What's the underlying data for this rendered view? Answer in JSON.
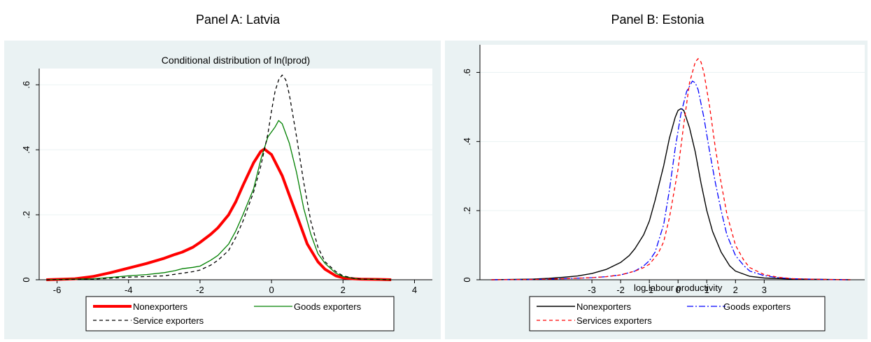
{
  "panels": {
    "a_title": "Panel A: Latvia",
    "b_title": "Panel B: Estonia"
  },
  "colors": {
    "outer_background": "#eaf2f3",
    "plot_background": "#ffffff",
    "grid": "#eaf2f3"
  },
  "chart_data": [
    {
      "type": "line",
      "title": "Conditional distribution of ln(lprod)",
      "xlabel": "",
      "ylabel": "",
      "xlim": [
        -6.5,
        4.5
      ],
      "ylim": [
        0,
        0.65
      ],
      "xticks": [
        -6,
        -4,
        -2,
        0,
        2,
        4
      ],
      "xtick_labels": [
        "-6",
        "-4",
        "-2",
        "0",
        "2",
        "4"
      ],
      "yticks": [
        0,
        0.2,
        0.4,
        0.6
      ],
      "ytick_labels": [
        "0",
        ".2",
        ".4",
        ".6"
      ],
      "grid": true,
      "legend_position": "bottom",
      "series": [
        {
          "name": "Nonexporters",
          "color": "#ff0000",
          "width": 4,
          "dash": "",
          "x": [
            -6.3,
            -5.5,
            -5,
            -4.5,
            -4,
            -3.5,
            -3,
            -2.7,
            -2.5,
            -2.2,
            -2,
            -1.7,
            -1.5,
            -1.2,
            -1,
            -0.8,
            -0.5,
            -0.3,
            -0.2,
            0,
            0.3,
            0.5,
            0.8,
            1,
            1.3,
            1.5,
            1.8,
            2,
            2.3,
            2.5,
            3,
            3.35
          ],
          "y": [
            0,
            0.003,
            0.01,
            0.022,
            0.036,
            0.05,
            0.066,
            0.078,
            0.085,
            0.1,
            0.115,
            0.14,
            0.16,
            0.2,
            0.24,
            0.29,
            0.36,
            0.395,
            0.402,
            0.385,
            0.32,
            0.26,
            0.17,
            0.11,
            0.055,
            0.032,
            0.012,
            0.006,
            0.003,
            0.002,
            0.001,
            0
          ]
        },
        {
          "name": "Goods exporters",
          "color": "#008000",
          "width": 1.3,
          "dash": "",
          "x": [
            -6.3,
            -5,
            -4.5,
            -4,
            -3.5,
            -3,
            -2.7,
            -2.5,
            -2.2,
            -2,
            -1.7,
            -1.5,
            -1.2,
            -1,
            -0.8,
            -0.5,
            -0.3,
            -0.1,
            0.1,
            0.2,
            0.3,
            0.5,
            0.7,
            0.9,
            1.1,
            1.3,
            1.5,
            1.8,
            2,
            2.3,
            2.5,
            3,
            3.35
          ],
          "y": [
            0,
            0.003,
            0.007,
            0.012,
            0.016,
            0.022,
            0.028,
            0.034,
            0.038,
            0.042,
            0.06,
            0.075,
            0.11,
            0.15,
            0.2,
            0.28,
            0.37,
            0.44,
            0.47,
            0.49,
            0.48,
            0.42,
            0.33,
            0.22,
            0.14,
            0.08,
            0.05,
            0.02,
            0.01,
            0.004,
            0.002,
            0.001,
            0
          ]
        },
        {
          "name": "Service exporters",
          "color": "#000000",
          "width": 1.3,
          "dash": "5,4",
          "x": [
            -6.3,
            -5,
            -4.5,
            -4,
            -3.5,
            -3,
            -2.5,
            -2.2,
            -2,
            -1.7,
            -1.5,
            -1.2,
            -1,
            -0.8,
            -0.5,
            -0.3,
            -0.1,
            0,
            0.1,
            0.2,
            0.3,
            0.4,
            0.5,
            0.7,
            0.9,
            1.1,
            1.3,
            1.5,
            1.8,
            2,
            2.3,
            2.5,
            3,
            3.35
          ],
          "y": [
            0,
            0.002,
            0.005,
            0.008,
            0.01,
            0.012,
            0.02,
            0.025,
            0.03,
            0.045,
            0.06,
            0.09,
            0.13,
            0.18,
            0.27,
            0.35,
            0.45,
            0.52,
            0.58,
            0.615,
            0.63,
            0.615,
            0.57,
            0.44,
            0.3,
            0.18,
            0.1,
            0.055,
            0.025,
            0.012,
            0.005,
            0.002,
            0.001,
            0
          ]
        }
      ]
    },
    {
      "type": "line",
      "title": "",
      "xlabel": "log labour productivity",
      "ylabel": "",
      "xlim": [
        -6.9,
        6.5
      ],
      "ylim": [
        0,
        0.68
      ],
      "xticks": [
        -3,
        -2,
        -1,
        0,
        1,
        2,
        3
      ],
      "xtick_labels": [
        "-3",
        "-2",
        "-1",
        "0",
        "1",
        "2",
        "3"
      ],
      "yticks": [
        0,
        0.2,
        0.4,
        0.6
      ],
      "ytick_labels": [
        "0",
        ".2",
        ".4",
        ".6"
      ],
      "grid": true,
      "legend_position": "bottom",
      "series": [
        {
          "name": "Nonexporters",
          "color": "#000000",
          "width": 1.4,
          "dash": "",
          "x": [
            -6.5,
            -5,
            -4.5,
            -4,
            -3.5,
            -3,
            -2.5,
            -2,
            -1.7,
            -1.5,
            -1.2,
            -1,
            -0.8,
            -0.5,
            -0.3,
            -0.1,
            0,
            0.1,
            0.2,
            0.4,
            0.6,
            0.8,
            1,
            1.2,
            1.5,
            1.8,
            2,
            2.5,
            3,
            4,
            5,
            6
          ],
          "y": [
            0,
            0.002,
            0.004,
            0.007,
            0.011,
            0.018,
            0.03,
            0.05,
            0.07,
            0.09,
            0.13,
            0.17,
            0.23,
            0.33,
            0.41,
            0.47,
            0.49,
            0.495,
            0.49,
            0.44,
            0.37,
            0.28,
            0.2,
            0.14,
            0.08,
            0.04,
            0.025,
            0.01,
            0.005,
            0.002,
            0.001,
            0
          ]
        },
        {
          "name": "Goods exporters",
          "color": "#0000ff",
          "width": 1.3,
          "dash": "9,3,2,3",
          "x": [
            -6.5,
            -5,
            -4,
            -3,
            -2.5,
            -2,
            -1.5,
            -1.2,
            -1,
            -0.8,
            -0.5,
            -0.3,
            -0.1,
            0.1,
            0.3,
            0.5,
            0.6,
            0.7,
            0.9,
            1.1,
            1.3,
            1.5,
            1.7,
            2,
            2.3,
            2.5,
            3,
            3.5,
            4,
            5,
            6
          ],
          "y": [
            0,
            0.001,
            0.003,
            0.006,
            0.009,
            0.014,
            0.025,
            0.04,
            0.055,
            0.08,
            0.16,
            0.26,
            0.38,
            0.48,
            0.545,
            0.575,
            0.57,
            0.55,
            0.47,
            0.37,
            0.28,
            0.2,
            0.13,
            0.07,
            0.04,
            0.025,
            0.012,
            0.006,
            0.003,
            0.001,
            0
          ]
        },
        {
          "name": "Services exporters",
          "color": "#ff0000",
          "width": 1.3,
          "dash": "5,4",
          "x": [
            -6.5,
            -5,
            -4,
            -3,
            -2.5,
            -2,
            -1.5,
            -1.2,
            -1,
            -0.7,
            -0.5,
            -0.3,
            0,
            0.2,
            0.4,
            0.6,
            0.7,
            0.8,
            0.9,
            1.1,
            1.3,
            1.5,
            1.7,
            2,
            2.3,
            2.5,
            3,
            3.5,
            4,
            5,
            6
          ],
          "y": [
            0,
            0.001,
            0.003,
            0.006,
            0.009,
            0.014,
            0.025,
            0.035,
            0.045,
            0.075,
            0.11,
            0.18,
            0.32,
            0.45,
            0.57,
            0.63,
            0.64,
            0.63,
            0.6,
            0.5,
            0.38,
            0.28,
            0.19,
            0.1,
            0.055,
            0.035,
            0.015,
            0.007,
            0.003,
            0.001,
            0
          ]
        }
      ]
    }
  ]
}
